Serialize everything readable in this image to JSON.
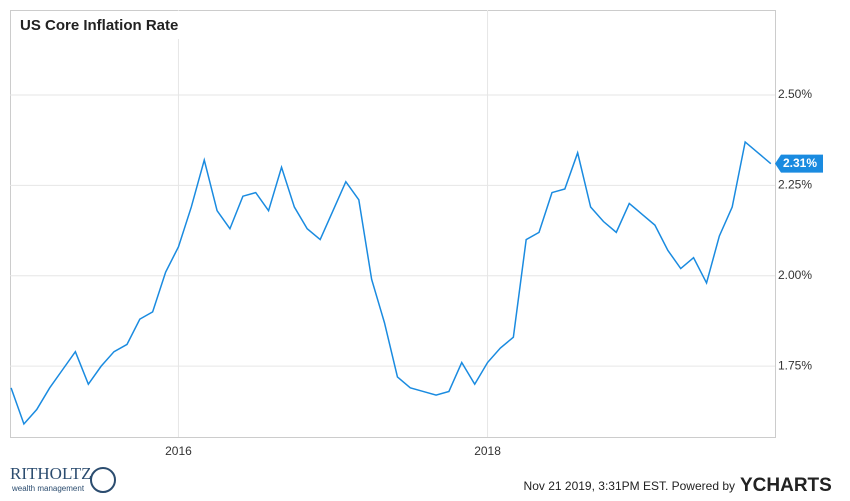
{
  "chart_data": {
    "type": "line",
    "title": "US Core Inflation Rate",
    "x": [
      2014.917,
      2015,
      2015.083,
      2015.167,
      2015.25,
      2015.333,
      2015.417,
      2015.5,
      2015.583,
      2015.667,
      2015.75,
      2015.833,
      2015.917,
      2016,
      2016.083,
      2016.167,
      2016.25,
      2016.333,
      2016.417,
      2016.5,
      2016.583,
      2016.667,
      2016.75,
      2016.833,
      2016.917,
      2017,
      2017.083,
      2017.167,
      2017.25,
      2017.333,
      2017.417,
      2017.5,
      2017.583,
      2017.667,
      2017.75,
      2017.833,
      2017.917,
      2018,
      2018.083,
      2018.167,
      2018.25,
      2018.333,
      2018.417,
      2018.5,
      2018.583,
      2018.667,
      2018.75,
      2018.833,
      2018.917,
      2019,
      2019.083,
      2019.167,
      2019.25,
      2019.333,
      2019.417,
      2019.5,
      2019.583,
      2019.667,
      2019.75,
      2019.833
    ],
    "series": [
      {
        "name": "US Core Inflation Rate",
        "color": "#1a8be0",
        "values": [
          1.69,
          1.59,
          1.63,
          1.69,
          1.74,
          1.79,
          1.7,
          1.75,
          1.79,
          1.81,
          1.88,
          1.9,
          2.01,
          2.08,
          2.19,
          2.32,
          2.18,
          2.13,
          2.22,
          2.23,
          2.18,
          2.3,
          2.19,
          2.13,
          2.1,
          2.18,
          2.26,
          2.21,
          1.99,
          1.87,
          1.72,
          1.69,
          1.68,
          1.67,
          1.68,
          1.76,
          1.7,
          1.76,
          1.8,
          1.83,
          2.1,
          2.12,
          2.23,
          2.24,
          2.34,
          2.19,
          2.15,
          2.12,
          2.2,
          2.17,
          2.14,
          2.07,
          2.02,
          2.05,
          1.98,
          2.11,
          2.19,
          2.37,
          2.34,
          2.31
        ],
        "value_labels": [
          null,
          null,
          null,
          null,
          null,
          null,
          null,
          null,
          null,
          null,
          null,
          null,
          null,
          null,
          null,
          null,
          null,
          null,
          null,
          null,
          null,
          null,
          null,
          null,
          null,
          null,
          null,
          null,
          null,
          null,
          null,
          null,
          null,
          null,
          null,
          null,
          null,
          null,
          null,
          null,
          null,
          null,
          null,
          null,
          null,
          null,
          null,
          null,
          null,
          null,
          null,
          null,
          null,
          null,
          null,
          null,
          null,
          null,
          null,
          "2.31%"
        ]
      }
    ],
    "xlim": [
      2014.91,
      2019.86
    ],
    "xticks": [
      2016,
      2018
    ],
    "ylim": [
      1.554,
      2.735
    ],
    "yticks": [
      {
        "value": 1.75,
        "label": "1.75%"
      },
      {
        "value": 2.0,
        "label": "2.00%"
      },
      {
        "value": 2.25,
        "label": "2.25%"
      },
      {
        "value": 2.5,
        "label": "2.50%"
      }
    ],
    "grid": true,
    "footer": {
      "timestamp": "Nov 21 2019, 3:31PM EST.  Powered by",
      "brand": "YCHARTS",
      "left_logo": "RITHOLTZ",
      "left_logo_sub": "wealth management"
    }
  }
}
